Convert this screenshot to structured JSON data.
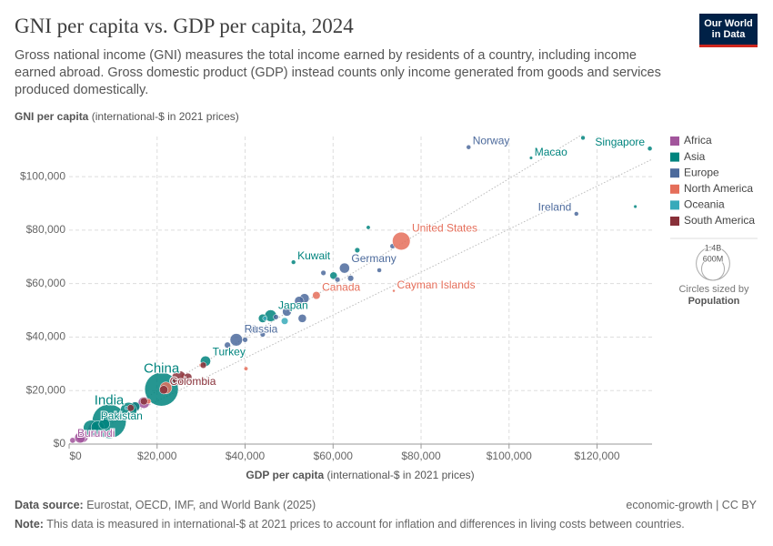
{
  "logo": {
    "line1": "Our World",
    "line2": "in Data"
  },
  "chart_data": {
    "type": "scatter",
    "title": "GNI per capita vs. GDP per capita, 2024",
    "subtitle": "Gross national income (GNI) measures the total income earned by residents of a country, including income earned abroad. Gross domestic product (GDP) instead counts only income generated from goods and services produced domestically.",
    "y_label": {
      "name": "GNI per capita",
      "unit": "(international-$ in 2021 prices)"
    },
    "x_label": {
      "name": "GDP per capita",
      "unit": "(international-$ in 2021 prices)"
    },
    "xlim": [
      0,
      132500
    ],
    "ylim": [
      0,
      115000
    ],
    "xticks": [
      {
        "value": 0,
        "label": "$0"
      },
      {
        "value": 20000,
        "label": "$20,000"
      },
      {
        "value": 40000,
        "label": "$40,000"
      },
      {
        "value": 60000,
        "label": "$60,000"
      },
      {
        "value": 80000,
        "label": "$80,000"
      },
      {
        "value": 100000,
        "label": "$100,000"
      },
      {
        "value": 120000,
        "label": "$120,000"
      }
    ],
    "yticks": [
      {
        "value": 0,
        "label": "$0"
      },
      {
        "value": 20000,
        "label": "$20,000"
      },
      {
        "value": 40000,
        "label": "$40,000"
      },
      {
        "value": 60000,
        "label": "$60,000"
      },
      {
        "value": 80000,
        "label": "$80,000"
      },
      {
        "value": 100000,
        "label": "$100,000"
      }
    ],
    "grid": true,
    "legend": "right",
    "series": [
      {
        "name": "Africa",
        "color": "#a2559c",
        "x": [
          800,
          6000,
          17000,
          15000,
          3000,
          2500,
          4000,
          11000
        ],
        "values": [
          1400,
          5500,
          15500,
          14000,
          2800,
          2400,
          3800,
          10500
        ],
        "sizes": [
          14000000,
          230000000,
          115000000,
          63000000,
          130000000,
          100000000,
          55000000,
          46000000
        ],
        "labels": [
          "Burundi",
          null,
          null,
          null,
          null,
          null,
          null,
          null
        ]
      },
      {
        "name": "Asia",
        "color": "#00847e",
        "x": [
          132000,
          105000,
          21000,
          9100,
          5000,
          51000,
          45800,
          31000,
          116800,
          68000,
          128700,
          60100,
          65500,
          44000,
          15000,
          6500,
          13500,
          8000
        ],
        "values": [
          110500,
          107000,
          20500,
          8500,
          6000,
          68000,
          48000,
          31000,
          114500,
          81000,
          88800,
          63000,
          72500,
          47000,
          14000,
          6200,
          12500,
          7500
        ],
        "sizes": [
          6000000,
          700000,
          1410000000,
          1450000000,
          250000000,
          4900000,
          124000000,
          87000000,
          5000000,
          3000000,
          1000000,
          33000000,
          10000000,
          52000000,
          70000000,
          170000000,
          280000000,
          100000000
        ],
        "labels": [
          "Singapore",
          "Macao",
          "China",
          "India",
          "Pakistan",
          "Kuwait",
          "Japan",
          "Turkey",
          null,
          null,
          null,
          null,
          null,
          null,
          null,
          null,
          null,
          null
        ]
      },
      {
        "name": "Europe",
        "color": "#4c6a9c",
        "x": [
          90800,
          115300,
          62600,
          38000,
          73500,
          70500,
          64000,
          61000,
          57800,
          53500,
          52300,
          49500,
          53000,
          42000,
          44000,
          36000,
          47000,
          40000
        ],
        "values": [
          111000,
          86100,
          65800,
          39000,
          74000,
          65000,
          62000,
          61500,
          64000,
          54500,
          53500,
          49500,
          47000,
          43000,
          41000,
          37000,
          47500,
          39000
        ],
        "sizes": [
          5500000,
          5200000,
          84000000,
          144000000,
          9000000,
          6000000,
          18000000,
          10000000,
          10000000,
          68000000,
          66000000,
          59000000,
          48000000,
          38000000,
          10000000,
          19000000,
          10000000,
          10000000
        ],
        "labels": [
          "Norway",
          "Ireland",
          "Germany",
          "Russia",
          null,
          null,
          null,
          null,
          null,
          null,
          null,
          null,
          null,
          null,
          null,
          null,
          null,
          null
        ]
      },
      {
        "name": "North America",
        "color": "#e56e5a",
        "x": [
          75500,
          56200,
          73800,
          22000,
          40200,
          26000,
          30000,
          18000
        ],
        "values": [
          75900,
          55600,
          57300,
          21000,
          28200,
          25500,
          29500,
          16000
        ],
        "sizes": [
          340000000,
          40000000,
          70000,
          130000000,
          3000000,
          5000000,
          2000000,
          11000000
        ],
        "labels": [
          "United States",
          "Canada",
          "Cayman Islands",
          null,
          null,
          null,
          null,
          null
        ]
      },
      {
        "name": "Oceania",
        "color": "#38aaba",
        "x": [
          49000,
          44500,
          13000
        ],
        "values": [
          46000,
          47000,
          13500
        ],
        "sizes": [
          27000000,
          5000000,
          1000000
        ],
        "labels": [
          null,
          null,
          null
        ]
      },
      {
        "name": "South America",
        "color": "#883039",
        "x": [
          21500,
          25000,
          27000,
          30500,
          17000,
          14000,
          27500
        ],
        "values": [
          20300,
          24700,
          25000,
          29500,
          16000,
          13500,
          24000
        ],
        "sizes": [
          52000000,
          212000000,
          45000000,
          20000000,
          34000000,
          28000000,
          3500000
        ],
        "labels": [
          "Colombia",
          null,
          null,
          null,
          null,
          null,
          null
        ]
      }
    ],
    "size_legend": {
      "title": "Circles sized by",
      "variable": "Population",
      "sizes": [
        {
          "value": 1400000000,
          "label": "1.4B"
        },
        {
          "value": 600000000,
          "label": "600M"
        }
      ]
    },
    "source": {
      "label": "Data source:",
      "text": "Eurostat, OECD, IMF, and World Bank (2025)"
    },
    "license": "economic-growth | CC BY",
    "note": {
      "label": "Note:",
      "text": "This data is measured in international-$ at 2021 prices to account for inflation and differences in living costs between countries."
    }
  }
}
